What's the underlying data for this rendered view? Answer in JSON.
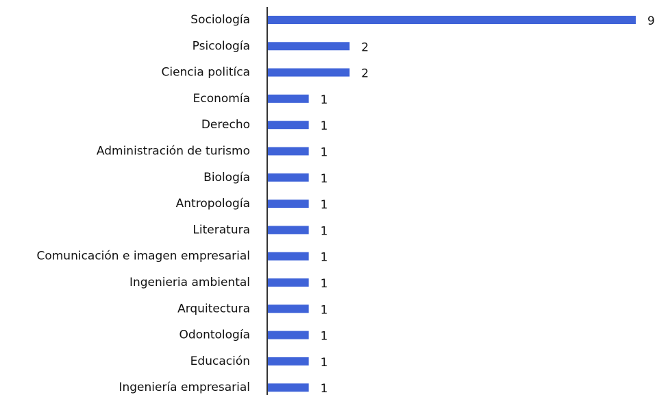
{
  "chart_data": {
    "type": "barh",
    "categories": [
      "Sociología",
      "Psicología",
      "Ciencia politíca",
      "Economía",
      "Derecho",
      "Administración de turismo",
      "Biología",
      "Antropología",
      "Literatura",
      "Comunicación e imagen empresarial",
      "Ingenieria ambiental",
      "Arquitectura",
      "Odontología",
      "Educación",
      "Ingeniería empresarial"
    ],
    "values": [
      9,
      2,
      2,
      1,
      1,
      1,
      1,
      1,
      1,
      1,
      1,
      1,
      1,
      1,
      1
    ],
    "color": "#3f63d8"
  }
}
